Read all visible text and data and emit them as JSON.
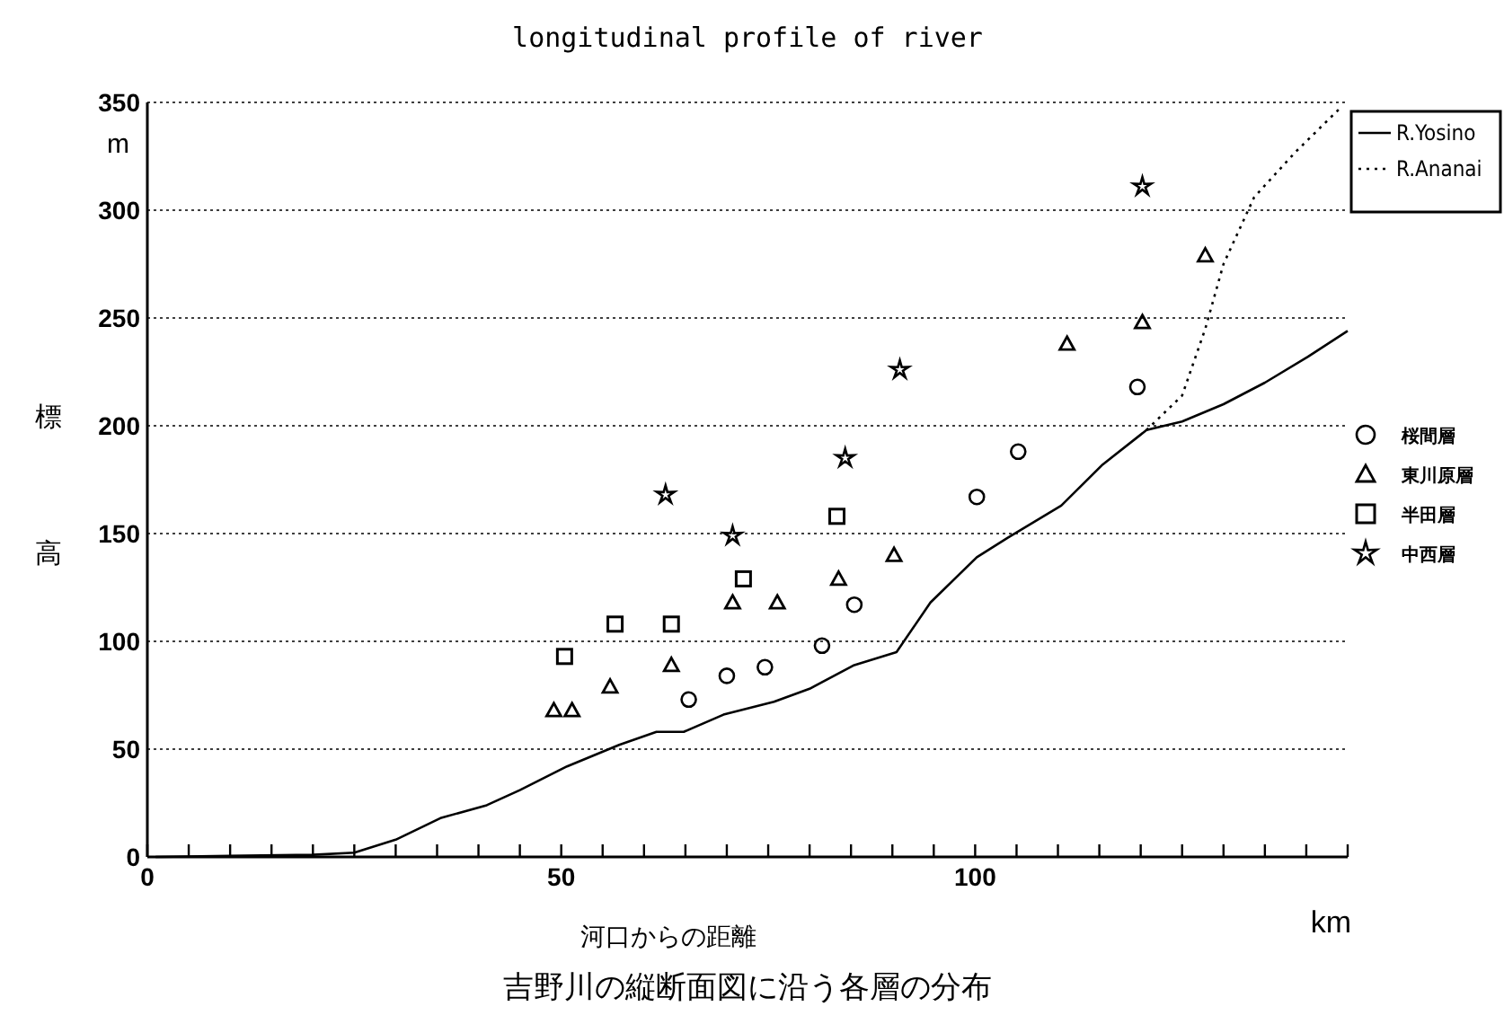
{
  "chart_data": {
    "type": "scatter",
    "title": "longitudinal profile of river",
    "xlabel": "河口からの距離",
    "ylabel": "標高",
    "annotations": [
      "m",
      "km",
      "吉野川の縦断面図に沿う各層の分布"
    ],
    "xlim": [
      0,
      145
    ],
    "ylim": [
      0,
      350
    ],
    "xticks": [
      0,
      {
        "value": 5,
        "label": null
      },
      {
        "value": 10,
        "label": null
      },
      {
        "value": 15,
        "label": null
      },
      {
        "value": 20,
        "label": null
      },
      {
        "value": 25,
        "label": null
      },
      {
        "value": 30,
        "label": null
      },
      {
        "value": 35,
        "label": null
      },
      {
        "value": 40,
        "label": null
      },
      {
        "value": 45,
        "label": null
      },
      50,
      {
        "value": 55,
        "label": null
      },
      {
        "value": 60,
        "label": null
      },
      {
        "value": 65,
        "label": null
      },
      {
        "value": 70,
        "label": null
      },
      {
        "value": 75,
        "label": null
      },
      {
        "value": 80,
        "label": null
      },
      {
        "value": 85,
        "label": null
      },
      {
        "value": 90,
        "label": null
      },
      {
        "value": 95,
        "label": null
      },
      100,
      {
        "value": 105,
        "label": null
      },
      {
        "value": 110,
        "label": null
      },
      {
        "value": 115,
        "label": null
      },
      {
        "value": 120,
        "label": null
      },
      {
        "value": 125,
        "label": null
      },
      {
        "value": 130,
        "label": null
      },
      {
        "value": 135,
        "label": null
      },
      {
        "value": 140,
        "label": null
      },
      {
        "value": 145,
        "label": null
      }
    ],
    "yticks": [
      0,
      50,
      100,
      150,
      200,
      250,
      300,
      350
    ],
    "grid": "y",
    "legend": "right",
    "series": [
      {
        "name": "R.Yosino",
        "type": "line",
        "color": "#000000",
        "line_style": "solid",
        "marker": "none",
        "x": [
          1,
          20,
          25,
          30,
          35.4,
          41,
          45,
          50.7,
          57,
          61.5,
          64.8,
          69.6,
          75.7,
          80,
          85.4,
          90.5,
          94.6,
          100.2,
          103.9,
          110.4,
          115.4,
          120.7,
          125,
          130,
          135,
          140.2,
          145
        ],
        "values": [
          0,
          1,
          2,
          8,
          18,
          24,
          31,
          42,
          52,
          58,
          58,
          66,
          72,
          78,
          89,
          95,
          118,
          139,
          148,
          163,
          182,
          198,
          202,
          210,
          220,
          232,
          244
        ]
      },
      {
        "name": "R.Ananai",
        "type": "line",
        "color": "#000000",
        "line_style": "dotted",
        "marker": "none",
        "x": [
          120.7,
          125,
          127.8,
          130,
          133.7,
          138.7,
          144
        ],
        "values": [
          198,
          214,
          245,
          275,
          306,
          327,
          347
        ]
      },
      {
        "name": "桜間層",
        "type": "scatter",
        "color": "#000000",
        "marker": "circle",
        "x": [
          65.4,
          70,
          74.6,
          81.5,
          85.4,
          100.2,
          105.2,
          119.6
        ],
        "values": [
          73,
          84,
          88,
          98,
          117,
          167,
          188,
          218
        ]
      },
      {
        "name": "東川原層",
        "type": "scatter",
        "color": "#000000",
        "marker": "triangle",
        "x": [
          49.1,
          51.3,
          55.9,
          63.3,
          70.7,
          76.1,
          83.5,
          90.2,
          111.1,
          120.2,
          127.8
        ],
        "values": [
          68,
          68,
          79,
          89,
          118,
          118,
          129,
          140,
          238,
          248,
          279
        ]
      },
      {
        "name": "半田層",
        "type": "scatter",
        "color": "#000000",
        "marker": "square",
        "x": [
          50.4,
          56.5,
          63.3,
          72,
          83.3
        ],
        "values": [
          93,
          108,
          108,
          129,
          158
        ]
      },
      {
        "name": "中西層",
        "type": "scatter",
        "color": "#000000",
        "marker": "star",
        "x": [
          62.6,
          70.7,
          84.3,
          90.9,
          120.2
        ],
        "values": [
          168,
          149,
          185,
          226,
          311
        ]
      }
    ]
  }
}
